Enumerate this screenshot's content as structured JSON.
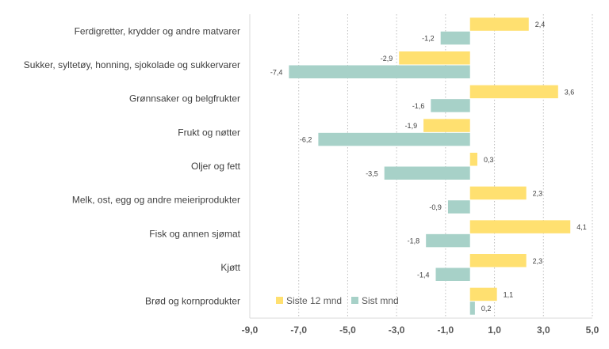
{
  "chart_data": {
    "type": "bar",
    "orientation": "horizontal",
    "categories": [
      "Ferdigretter, krydder og andre matvarer",
      "Sukker, syltetøy, honning, sjokolade og sukkervarer",
      "Grønnsaker og belgfrukter",
      "Frukt og nøtter",
      "Oljer og fett",
      "Melk, ost, egg og andre meieriprodukter",
      "Fisk og annen sjømat",
      "Kjøtt",
      "Brød og kornprodukter"
    ],
    "series": [
      {
        "name": "Siste 12 mnd",
        "color": "#FFE070",
        "values": [
          2.4,
          -2.9,
          3.6,
          -1.9,
          0.3,
          2.3,
          4.1,
          2.3,
          1.1
        ],
        "labels": [
          "2,4",
          "-2,9",
          "3,6",
          "-1,9",
          "0,3",
          "2,3",
          "4,1",
          "2,3",
          "1,1"
        ]
      },
      {
        "name": "Sist mnd",
        "color": "#A7D1C8",
        "values": [
          -1.2,
          -7.4,
          -1.6,
          -6.2,
          -3.5,
          -0.9,
          -1.8,
          -1.4,
          0.2
        ],
        "labels": [
          "-1,2",
          "-7,4",
          "-1,6",
          "-6,2",
          "-3,5",
          "-0,9",
          "-1,8",
          "-1,4",
          "0,2"
        ]
      }
    ],
    "xlim": [
      -9,
      5
    ],
    "xticks": [
      -9,
      -7,
      -5,
      -3,
      -1,
      1,
      3,
      5
    ],
    "xtick_labels": [
      "-9,0",
      "-7,0",
      "-5,0",
      "-3,0",
      "-1,0",
      "1,0",
      "3,0",
      "5,0"
    ],
    "grid": "vertical dotted",
    "legend_position": "bottom-left inside",
    "title": "",
    "xlabel": "",
    "ylabel": ""
  }
}
